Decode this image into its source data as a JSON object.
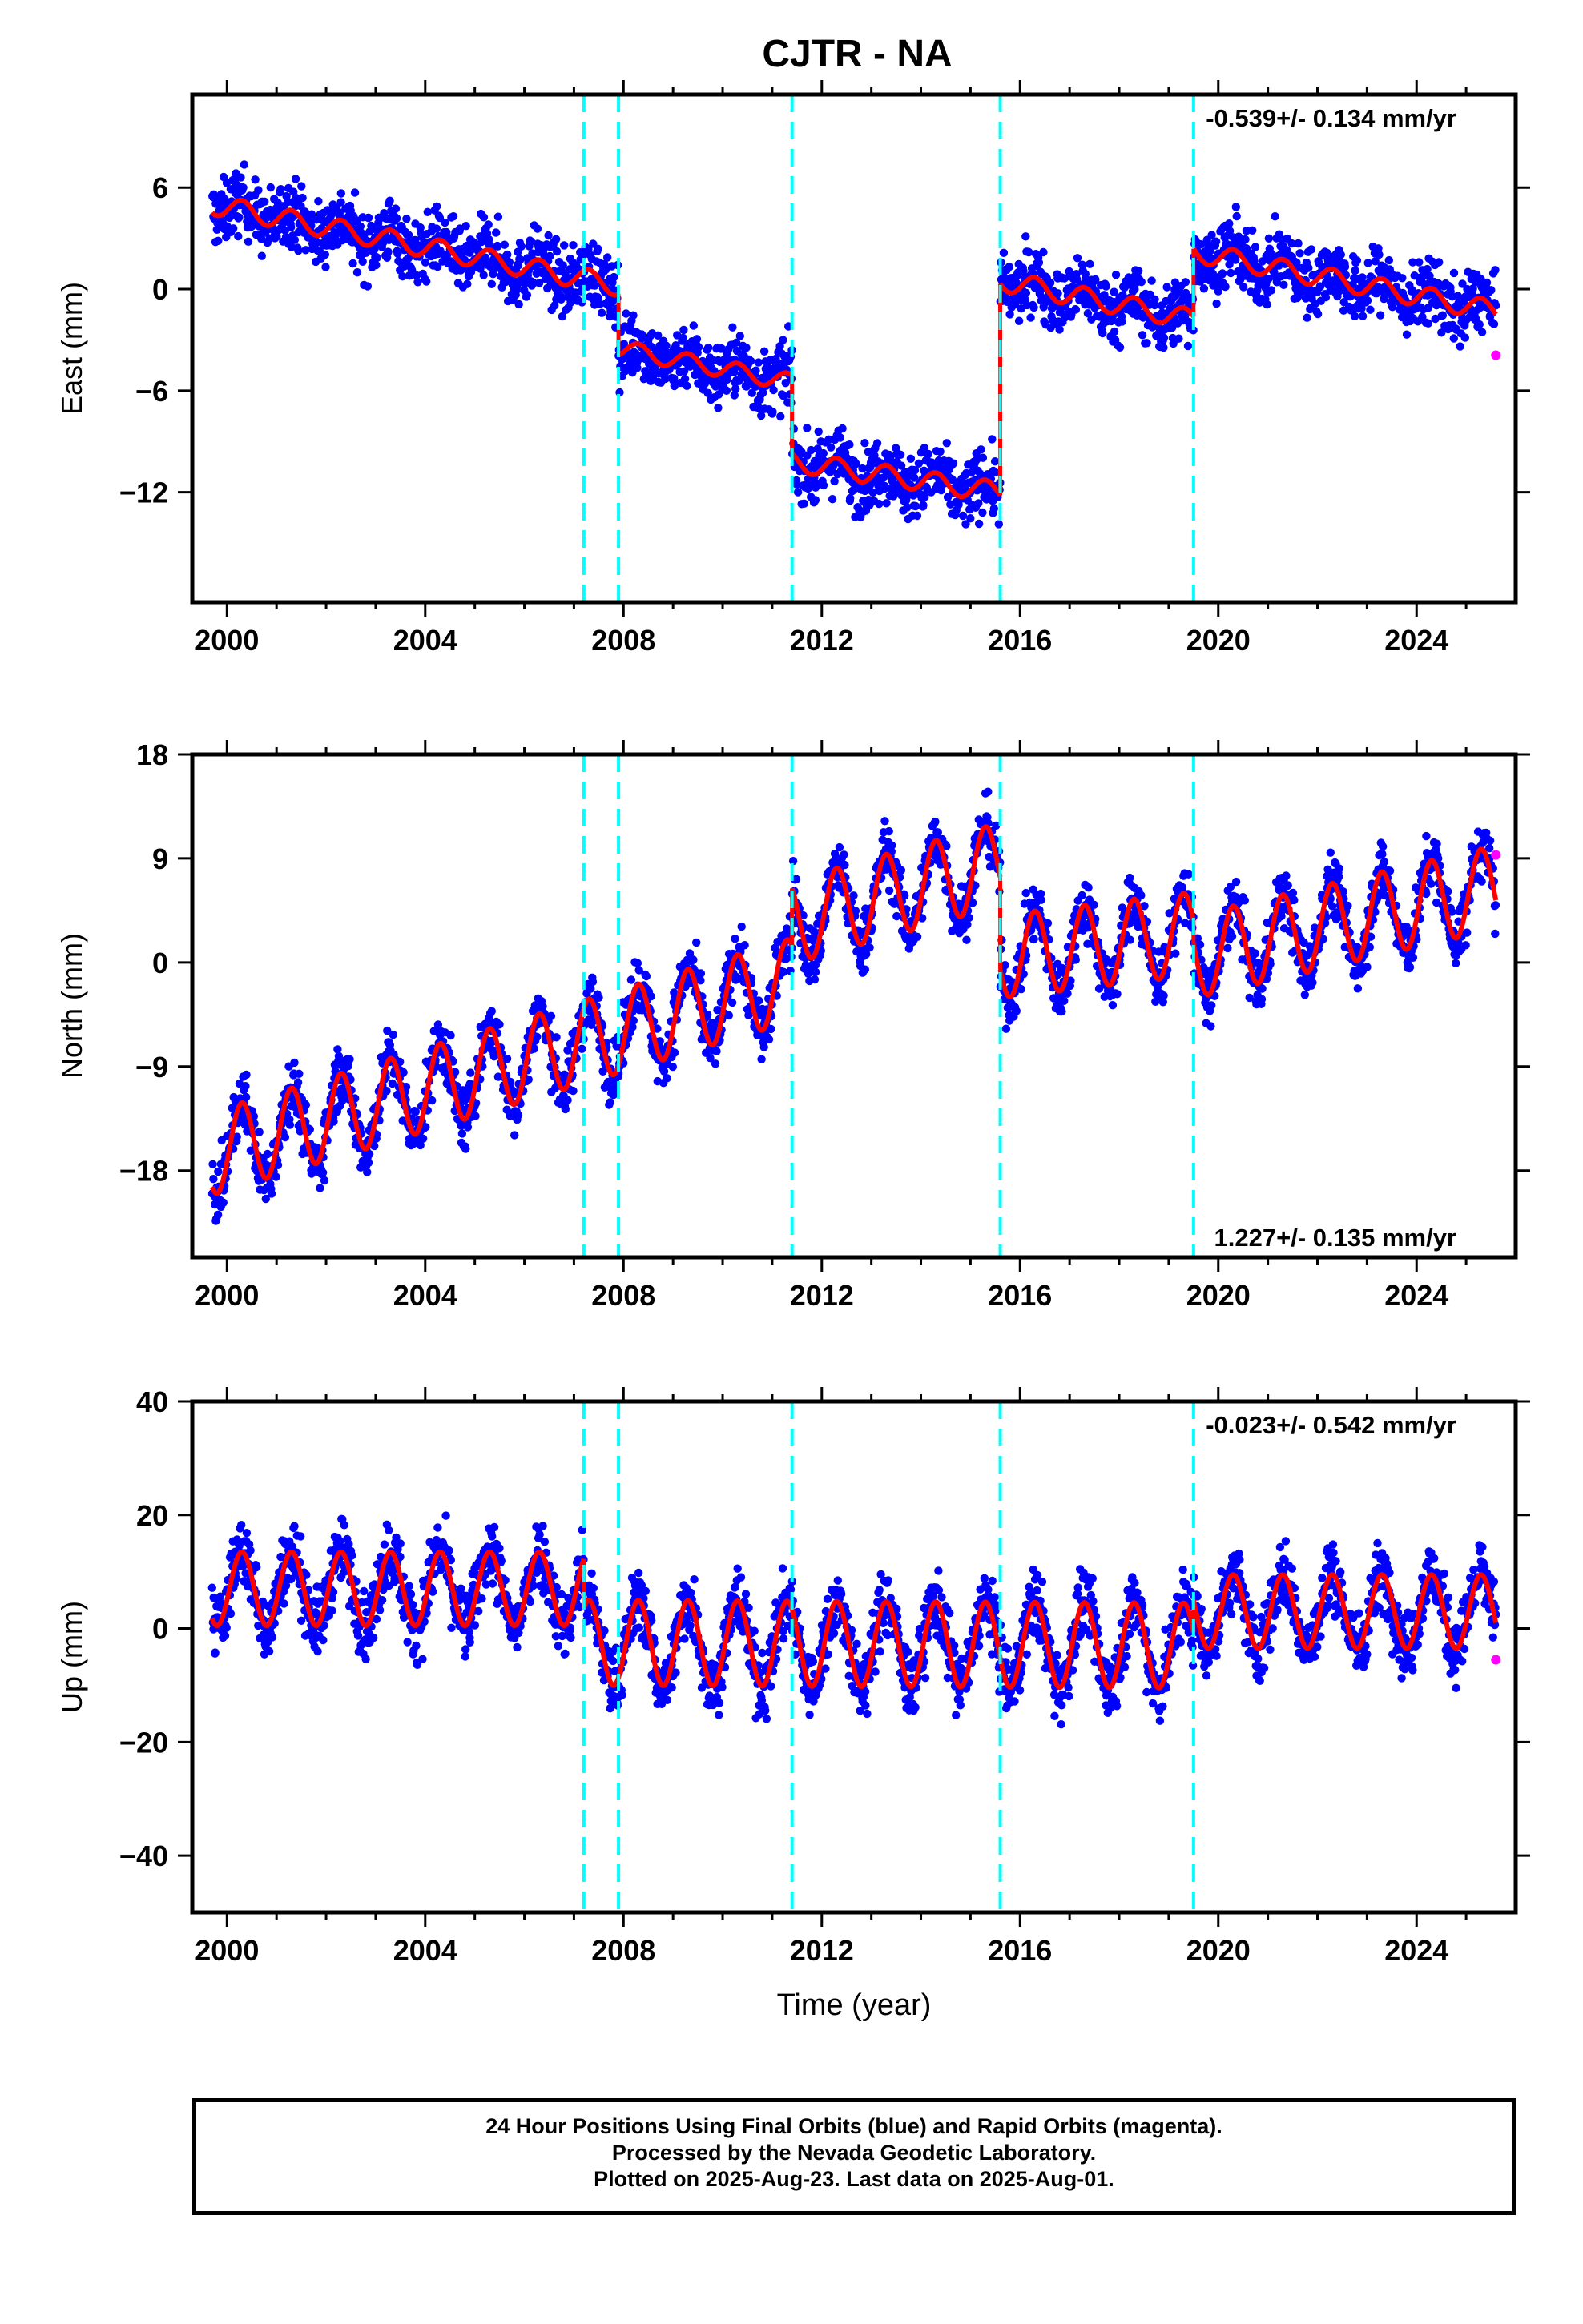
{
  "title": "CJTR - NA",
  "colors": {
    "final_orbits": "#0000ff",
    "rapid_orbits": "#ff00ff",
    "model": "#ff0000",
    "breaks": "#00ffff",
    "frame": "#000000"
  },
  "caption": {
    "line1": "24 Hour Positions Using Final Orbits (blue) and Rapid Orbits (magenta).",
    "line2": "Processed by the Nevada Geodetic Laboratory.",
    "line3": "Plotted on 2025-Aug-23. Last data on 2025-Aug-01."
  },
  "chart_data": [
    {
      "type": "scatter",
      "name": "east",
      "ylabel": "East (mm)",
      "xlabel": "",
      "xlim": [
        1999.3,
        2026.0
      ],
      "ylim": [
        -18.5,
        11.5
      ],
      "xticks": [
        2000,
        2004,
        2008,
        2012,
        2016,
        2020,
        2024
      ],
      "yticks": [
        6,
        0,
        -6,
        -12
      ],
      "grid": false,
      "rate_text": "-0.539+/- 0.134 mm/yr",
      "rate_position": "top-right",
      "breaks": [
        2007.2,
        2007.9,
        2011.4,
        2015.6,
        2019.5
      ],
      "model_segments": [
        {
          "from": 1999.7,
          "to": 2007.9,
          "start": 5.0,
          "end": 0.2,
          "amp": 0.6
        },
        {
          "from": 2007.9,
          "to": 2011.4,
          "start": -3.5,
          "end": -5.5,
          "amp": 0.5
        },
        {
          "from": 2011.4,
          "to": 2015.6,
          "start": -10.2,
          "end": -12.0,
          "amp": 0.6
        },
        {
          "from": 2015.6,
          "to": 2019.5,
          "start": 0.5,
          "end": -1.8,
          "amp": 0.6
        },
        {
          "from": 2019.5,
          "to": 2025.6,
          "start": 2.2,
          "end": -1.3,
          "amp": 0.6
        }
      ],
      "scatter_spread": 1.6,
      "rapid_points": [
        {
          "x": 2025.6,
          "y": -3.9
        }
      ]
    },
    {
      "type": "scatter",
      "name": "north",
      "ylabel": "North (mm)",
      "xlabel": "",
      "xlim": [
        1999.3,
        2026.0
      ],
      "ylim": [
        -25.5,
        18
      ],
      "xticks": [
        2000,
        2004,
        2008,
        2012,
        2016,
        2020,
        2024
      ],
      "yticks": [
        18,
        9,
        0,
        -9,
        -18
      ],
      "grid": false,
      "rate_text": "1.227+/- 0.135 mm/yr",
      "rate_position": "bottom-right",
      "breaks": [
        2007.2,
        2007.9,
        2011.4,
        2015.6,
        2019.5
      ],
      "model_segments": [
        {
          "from": 1999.7,
          "to": 2011.4,
          "start": -16.5,
          "end": -1.5,
          "amp": 3.6
        },
        {
          "from": 2011.4,
          "to": 2015.6,
          "start": 3.5,
          "end": 8.5,
          "amp": 3.6
        },
        {
          "from": 2015.6,
          "to": 2019.5,
          "start": 0.5,
          "end": 2.5,
          "amp": 3.6
        },
        {
          "from": 2019.5,
          "to": 2025.6,
          "start": 0.5,
          "end": 6.5,
          "amp": 3.6
        }
      ],
      "scatter_spread": 2.2,
      "rapid_points": [
        {
          "x": 2025.6,
          "y": 9.3
        }
      ]
    },
    {
      "type": "scatter",
      "name": "up",
      "ylabel": "Up (mm)",
      "xlabel": "Time (year)",
      "xlim": [
        1999.3,
        2026.0
      ],
      "ylim": [
        -50,
        40
      ],
      "xticks": [
        2000,
        2004,
        2008,
        2012,
        2016,
        2020,
        2024
      ],
      "yticks": [
        40,
        20,
        0,
        -20,
        -40
      ],
      "grid": false,
      "rate_text": "-0.023+/- 0.542 mm/yr",
      "rate_position": "top-right",
      "breaks": [
        2007.2,
        2007.9,
        2011.4,
        2015.6,
        2019.5
      ],
      "model_segments": [
        {
          "from": 1999.7,
          "to": 2007.2,
          "start": 7.0,
          "end": 7.0,
          "amp": 6.5
        },
        {
          "from": 2007.2,
          "to": 2019.5,
          "start": -2.5,
          "end": -3.0,
          "amp": 7.5
        },
        {
          "from": 2019.5,
          "to": 2025.6,
          "start": 3.0,
          "end": 3.0,
          "amp": 6.5
        }
      ],
      "scatter_spread": 5.0,
      "rapid_points": [
        {
          "x": 2025.6,
          "y": -5.5
        }
      ]
    }
  ]
}
